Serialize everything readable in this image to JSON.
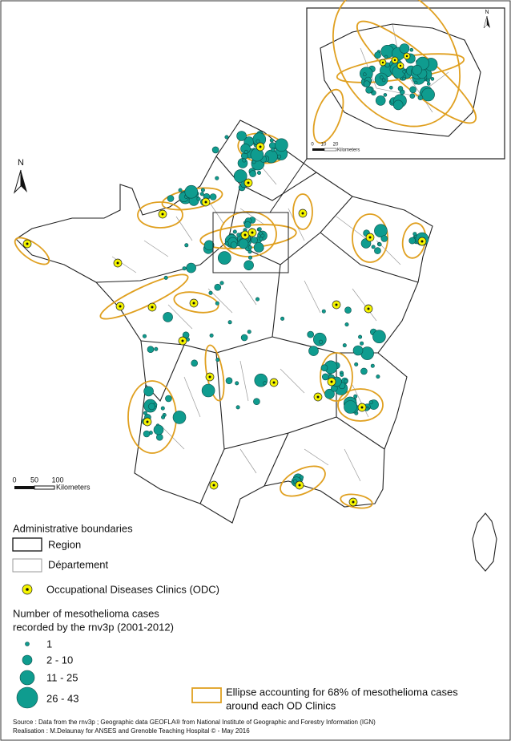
{
  "map": {
    "north": "N",
    "scale_bar": {
      "labels": [
        "0",
        "50",
        "100"
      ],
      "unit": "Kilometers"
    }
  },
  "inset": {
    "north": "N",
    "scale_bar": {
      "labels": [
        "0",
        "10",
        "20"
      ],
      "unit": "Kilometers"
    }
  },
  "legend": {
    "boundaries_title": "Administrative boundaries",
    "region": "Region",
    "departement": "Département",
    "odc": "Occupational Diseases Clinics (ODC)",
    "cases_title": [
      "Number of mesothelioma cases",
      "recorded by the rnv3p (2001-2012)"
    ],
    "case_classes": [
      "1",
      "2 - 10",
      "11 - 25",
      "26 - 43"
    ],
    "ellipse": [
      "Ellipse accounting for 68% of mesothelioma cases",
      "around each OD Clinics"
    ]
  },
  "source": [
    "Source : Data from the rnv3p ; Geographic data GEOFLA® from National Institute of Geographic and Forestry Information (IGN)",
    "Realisation : M.Delaunay for ANSES and Grenoble Teaching Hospital © - May 2016"
  ]
}
